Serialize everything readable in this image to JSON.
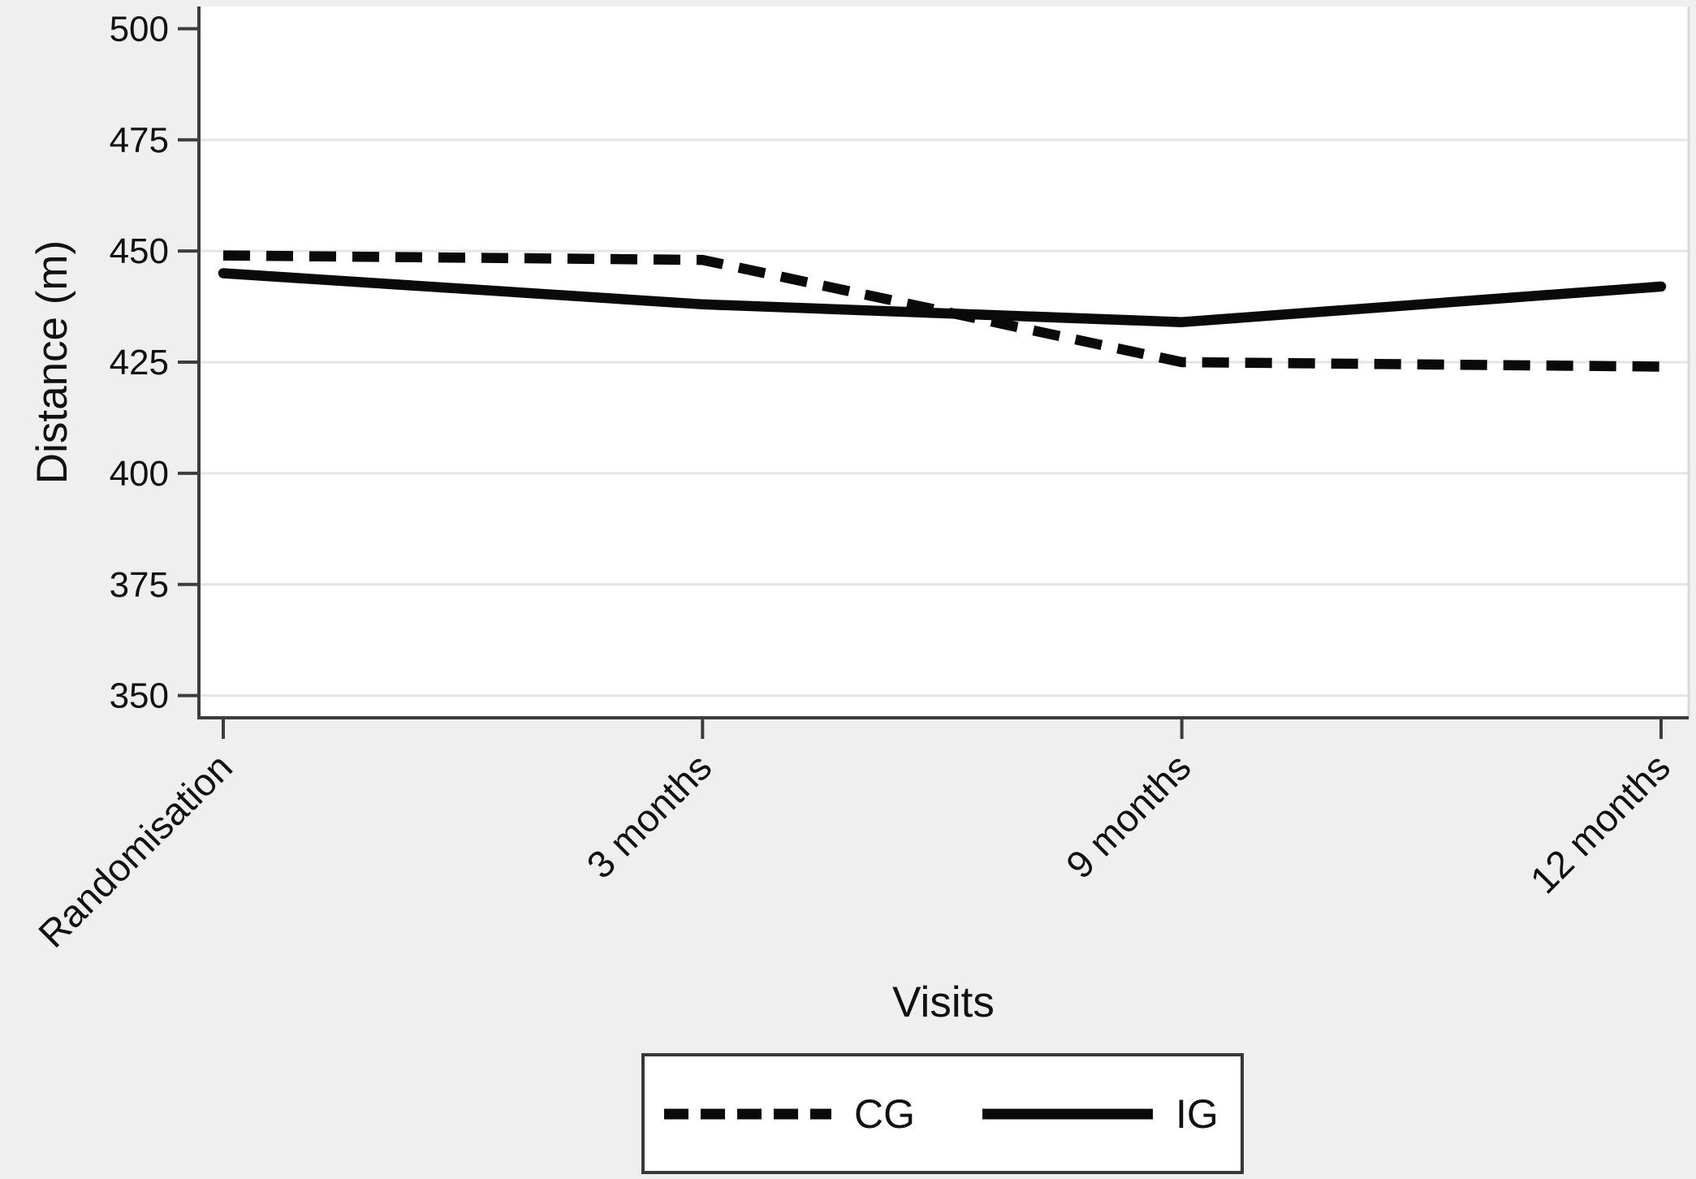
{
  "chart_data": {
    "type": "line",
    "title": "",
    "xlabel": "Visits",
    "ylabel": "Distance (m)",
    "categories": [
      "Randomisation",
      "3 months",
      "9 months",
      "12 months"
    ],
    "series": [
      {
        "name": "CG",
        "line_style": "dashed",
        "color": "#0a0a0a",
        "values": [
          449,
          448,
          425,
          424
        ]
      },
      {
        "name": "IG",
        "line_style": "solid",
        "color": "#0a0a0a",
        "values": [
          445,
          438,
          434,
          442
        ]
      }
    ],
    "ylim": [
      345,
      505
    ],
    "yticks": [
      350,
      375,
      400,
      425,
      450,
      475,
      500
    ],
    "gridline_values": [
      350,
      375,
      400,
      425,
      450,
      475
    ],
    "grid": true,
    "legend_position": "bottom-center",
    "legend_entries": [
      "CG",
      "IG"
    ]
  },
  "colors": {
    "background": "#efefef",
    "plot_background": "#ffffff",
    "axis": "#3d3d3d",
    "gridline": "#e4e4e4",
    "plot_right_border": "#d9d9d9",
    "text": "#111111",
    "legend_border": "#383838",
    "line": "#0a0a0a"
  }
}
